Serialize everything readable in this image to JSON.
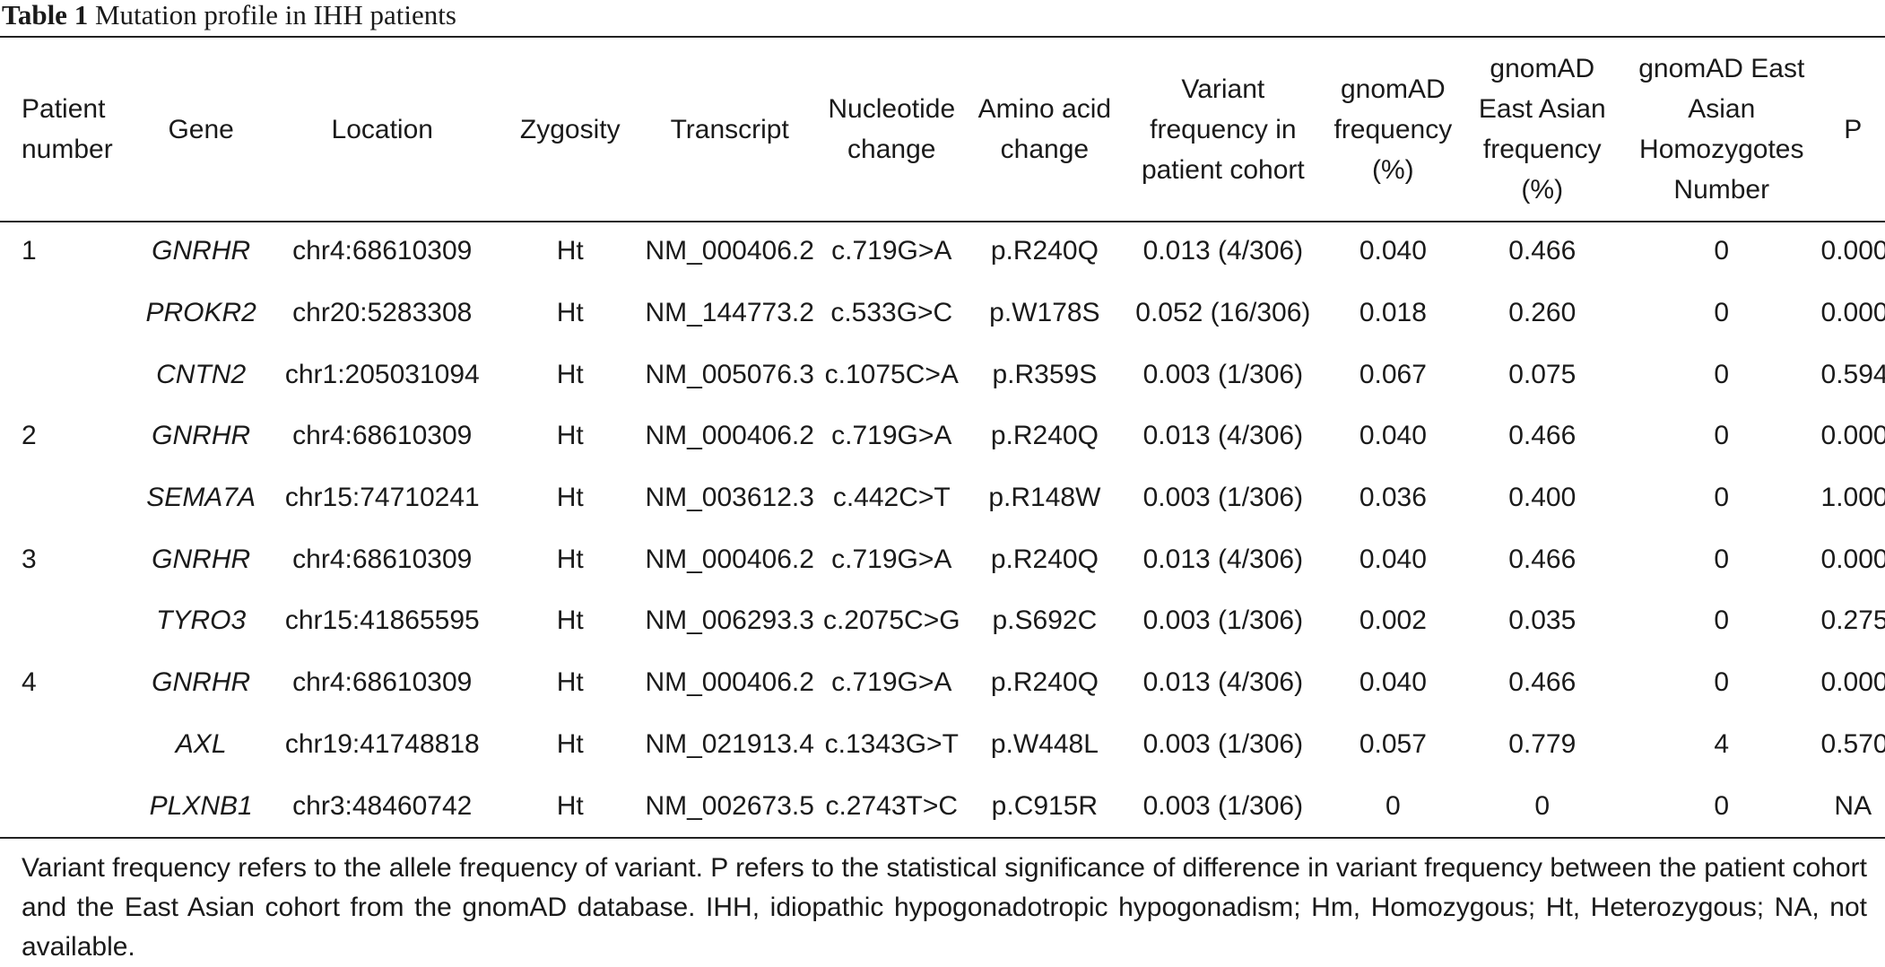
{
  "caption": {
    "label": "Table 1",
    "title": "Mutation profile in IHH patients"
  },
  "columns": [
    "Patient number",
    "Gene",
    "Location",
    "Zygosity",
    "Transcript",
    "Nucleotide change",
    "Amino acid change",
    "Variant frequency in patient cohort",
    "gnomAD frequency (%)",
    "gnomAD East Asian frequency (%)",
    "gnomAD East Asian Homozygotes Number",
    "P"
  ],
  "rows": [
    [
      "1",
      "GNRHR",
      "chr4:68610309",
      "Ht",
      "NM_000406.2",
      "c.719G>A",
      "p.R240Q",
      "0.013 (4/306)",
      "0.040",
      "0.466",
      "0",
      "0.000"
    ],
    [
      "",
      "PROKR2",
      "chr20:5283308",
      "Ht",
      "NM_144773.2",
      "c.533G>C",
      "p.W178S",
      "0.052 (16/306)",
      "0.018",
      "0.260",
      "0",
      "0.000"
    ],
    [
      "",
      "CNTN2",
      "chr1:205031094",
      "Ht",
      "NM_005076.3",
      "c.1075C>A",
      "p.R359S",
      "0.003 (1/306)",
      "0.067",
      "0.075",
      "0",
      "0.594"
    ],
    [
      "2",
      "GNRHR",
      "chr4:68610309",
      "Ht",
      "NM_000406.2",
      "c.719G>A",
      "p.R240Q",
      "0.013 (4/306)",
      "0.040",
      "0.466",
      "0",
      "0.000"
    ],
    [
      "",
      "SEMA7A",
      "chr15:74710241",
      "Ht",
      "NM_003612.3",
      "c.442C>T",
      "p.R148W",
      "0.003 (1/306)",
      "0.036",
      "0.400",
      "0",
      "1.000"
    ],
    [
      "3",
      "GNRHR",
      "chr4:68610309",
      "Ht",
      "NM_000406.2",
      "c.719G>A",
      "p.R240Q",
      "0.013 (4/306)",
      "0.040",
      "0.466",
      "0",
      "0.000"
    ],
    [
      "",
      "TYRO3",
      "chr15:41865595",
      "Ht",
      "NM_006293.3",
      "c.2075C>G",
      "p.S692C",
      "0.003 (1/306)",
      "0.002",
      "0.035",
      "0",
      "0.275"
    ],
    [
      "4",
      "GNRHR",
      "chr4:68610309",
      "Ht",
      "NM_000406.2",
      "c.719G>A",
      "p.R240Q",
      "0.013 (4/306)",
      "0.040",
      "0.466",
      "0",
      "0.000"
    ],
    [
      "",
      "AXL",
      "chr19:41748818",
      "Ht",
      "NM_021913.4",
      "c.1343G>T",
      "p.W448L",
      "0.003 (1/306)",
      "0.057",
      "0.779",
      "4",
      "0.570"
    ],
    [
      "",
      "PLXNB1",
      "chr3:48460742",
      "Ht",
      "NM_002673.5",
      "c.2743T>C",
      "p.C915R",
      "0.003 (1/306)",
      "0",
      "0",
      "0",
      "NA"
    ]
  ],
  "footnote": "Variant frequency refers to the allele frequency of variant. P refers to the statistical significance of difference in variant frequency between the patient cohort and the East Asian cohort from the gnomAD database. IHH, idiopathic hypogonadotropic hypogonadism; Hm, Homozygous; Ht, Heterozygous; NA, not available."
}
